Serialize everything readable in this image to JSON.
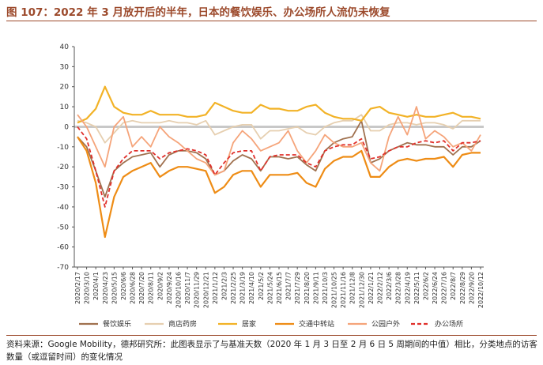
{
  "header": {
    "title": "图 107：2022 年 3 月放开后的半年，日本的餐饮娱乐、办公场所人流仍未恢复"
  },
  "footer": {
    "source": "资料来源：Google Mobility，德邦研究所：此图表显示了与基准天数（2020 年 1 月 3 日至 2 月 6 日 5 周期间的中值）相比，分类地点的访客数量（或逗留时间）的变化情况"
  },
  "chart_data": {
    "type": "line",
    "title": "2022 年 3 月放开后的半年，日本的餐饮娱乐、办公场所人流仍未恢复",
    "xlabel": "",
    "ylabel": "",
    "ylim": [
      -70,
      40
    ],
    "yticks": [
      -70,
      -60,
      -50,
      -40,
      -30,
      -20,
      -10,
      0,
      10,
      20,
      30,
      40
    ],
    "xtick_labels": [
      "2020/2/17",
      "2020/3/10",
      "2020/4/1",
      "2020/4/23",
      "2020/5/15",
      "2020/6/6",
      "2020/6/28",
      "2020/7/20",
      "2020/8/11",
      "2020/9/2",
      "2020/9/24",
      "2020/10/16",
      "2020/11/7",
      "2020/11/29",
      "2020/12/21",
      "2021/1/12",
      "2021/2/3",
      "2021/2/25",
      "2021/3/19",
      "2021/4/10",
      "2021/5/2",
      "2021/5/24",
      "2021/6/15",
      "2021/7/7",
      "2021/7/29",
      "2021/8/20",
      "2021/9/11",
      "2021/10/3",
      "2021/10/25",
      "2021/11/16",
      "2021/12/8",
      "2021/12/30",
      "2022/1/21",
      "2022/2/12",
      "2022/3/6",
      "2022/3/28",
      "2022/4/19",
      "2022/5/11",
      "2022/6/2",
      "2022/6/24",
      "2022/7/16",
      "2022/8/7",
      "2022/8/29",
      "2022/9/20",
      "2022/10/12"
    ],
    "legend": "bottom",
    "series": [
      {
        "name": "餐饮娱乐",
        "color": "#a0714f",
        "dash": "solid",
        "values": [
          -5,
          -10,
          -22,
          -35,
          -22,
          -18,
          -15,
          -14,
          -13,
          -20,
          -14,
          -12,
          -12,
          -13,
          -16,
          -24,
          -22,
          -17,
          -14,
          -16,
          -22,
          -15,
          -15,
          -16,
          -15,
          -19,
          -22,
          -12,
          -8,
          -6,
          -5,
          3,
          -18,
          -16,
          -12,
          -10,
          -8,
          -9,
          -9,
          -10,
          -10,
          -14,
          -10,
          -10,
          -7
        ]
      },
      {
        "name": "商店药房",
        "color": "#e6cfb0",
        "dash": "solid",
        "values": [
          3,
          2,
          0,
          -8,
          -3,
          2,
          3,
          2,
          2,
          2,
          3,
          2,
          2,
          1,
          3,
          -4,
          -2,
          0,
          1,
          1,
          -6,
          -2,
          -2,
          -1,
          0,
          -3,
          -4,
          0,
          2,
          3,
          3,
          6,
          -2,
          -2,
          1,
          2,
          2,
          1,
          2,
          2,
          1,
          -1,
          3,
          3,
          3
        ]
      },
      {
        "name": "居家",
        "color": "#f2b226",
        "dash": "solid",
        "values": [
          2,
          4,
          9,
          20,
          10,
          7,
          6,
          6,
          8,
          6,
          6,
          6,
          5,
          5,
          6,
          12,
          10,
          8,
          7,
          7,
          11,
          9,
          9,
          8,
          8,
          10,
          11,
          7,
          5,
          4,
          4,
          3,
          9,
          10,
          7,
          6,
          5,
          6,
          5,
          5,
          6,
          7,
          5,
          5,
          4
        ]
      },
      {
        "name": "交通中转站",
        "color": "#ee8c15",
        "dash": "solid",
        "values": [
          -5,
          -12,
          -28,
          -55,
          -35,
          -25,
          -22,
          -20,
          -18,
          -25,
          -22,
          -20,
          -20,
          -21,
          -22,
          -33,
          -30,
          -24,
          -22,
          -22,
          -30,
          -24,
          -24,
          -24,
          -23,
          -28,
          -30,
          -21,
          -17,
          -15,
          -15,
          -12,
          -25,
          -25,
          -20,
          -17,
          -16,
          -17,
          -16,
          -16,
          -15,
          -20,
          -14,
          -13,
          -13
        ]
      },
      {
        "name": "公园户外",
        "color": "#f5a47a",
        "dash": "solid",
        "values": [
          6,
          0,
          -10,
          -20,
          0,
          5,
          -10,
          -5,
          -10,
          0,
          -5,
          -8,
          -12,
          -16,
          -18,
          -24,
          -22,
          -8,
          -2,
          -6,
          -12,
          -10,
          -8,
          -2,
          -12,
          -18,
          -12,
          -4,
          -8,
          -10,
          -10,
          -8,
          -18,
          -22,
          -5,
          5,
          -4,
          10,
          -6,
          -2,
          -5,
          -10,
          -8,
          -12,
          -4
        ]
      },
      {
        "name": "办公场所",
        "color": "#e0302b",
        "dash": "dashed",
        "values": [
          0,
          -6,
          -22,
          -40,
          -22,
          -16,
          -12,
          -12,
          -12,
          -16,
          -13,
          -12,
          -11,
          -12,
          -14,
          -24,
          -18,
          -13,
          -12,
          -12,
          -22,
          -15,
          -14,
          -14,
          -14,
          -18,
          -20,
          -12,
          -10,
          -9,
          -9,
          -6,
          -16,
          -15,
          -12,
          -10,
          -10,
          -8,
          -7,
          -8,
          -7,
          -12,
          -8,
          -8,
          -7
        ]
      }
    ]
  }
}
